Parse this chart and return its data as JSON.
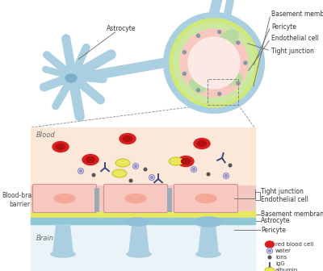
{
  "bg_color": "#ffffff",
  "blood_region_color": "#fce8d8",
  "astrocyte_color": "#aacfe0",
  "astrocyte_dark": "#7ab0cc",
  "endothelial_fill": "#f8c8c0",
  "endothelial_edge": "#e09090",
  "endothelial_nucleus": "#f4a090",
  "pericyte_color": "#aacfe0",
  "basement_yellow": "#e8e860",
  "basement_teal": "#90c8d8",
  "tight_junction_color": "#9aacb8",
  "red_blood_cell_color": "#d82020",
  "red_blood_cell_dark": "#b01010",
  "albumin_fill": "#e8e858",
  "albumin_edge": "#c0c020",
  "water_color": "#9090c8",
  "ions_color": "#555555",
  "igg_color": "#3a4a80",
  "annot_color": "#666666",
  "labels": {
    "astrocyte": "Astrocyte",
    "basement_membrane": "Basement membrane",
    "pericyte": "Pericyte",
    "endothelial_cell": "Endothelial cell",
    "tight_junction": "Tight junction",
    "blood": "Blood",
    "bbb": "Blood-brain\nbarrier",
    "brain": "Brain",
    "red_blood_cell": "red blood cell",
    "water": "water",
    "ions": "ions",
    "IgG": "IgG",
    "albumin": "albumin"
  },
  "fs": 5.5,
  "fs_label": 6.0
}
